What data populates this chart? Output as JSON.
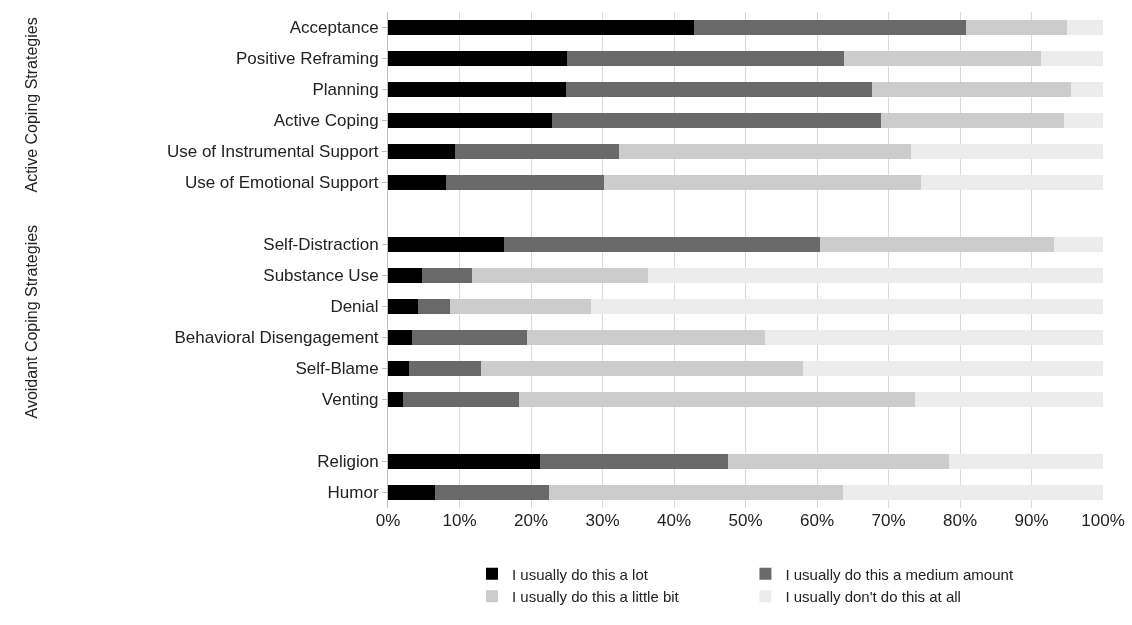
{
  "chart_data": {
    "type": "bar",
    "orientation": "horizontal",
    "stacked": true,
    "categories": [
      "Acceptance",
      "Positive Reframing",
      "Planning",
      "Active Coping",
      "Use of Instrumental Support",
      "Use of Emotional Support",
      null,
      "Self-Distraction",
      "Substance Use",
      "Denial",
      "Behavioral Disengagement",
      "Self-Blame",
      "Venting",
      null,
      "Religion",
      "Humor"
    ],
    "series": [
      {
        "name": "I usually do this a lot",
        "color": "#000000",
        "values": [
          42.8,
          25.1,
          24.9,
          23.0,
          9.3,
          8.1,
          null,
          16.2,
          4.7,
          4.2,
          3.3,
          3.0,
          2.1,
          null,
          21.3,
          6.6
        ]
      },
      {
        "name": "I usually do this a medium amount",
        "color": "#696969",
        "values": [
          38.0,
          38.7,
          42.8,
          45.9,
          23.0,
          22.1,
          null,
          44.2,
          7.0,
          4.5,
          16.2,
          10.0,
          16.2,
          null,
          26.3,
          15.9
        ]
      },
      {
        "name": "I usually do this a little bit",
        "color": "#cccccc",
        "values": [
          14.2,
          27.5,
          27.8,
          25.7,
          40.8,
          44.4,
          null,
          32.7,
          24.6,
          19.7,
          33.2,
          45.0,
          55.4,
          null,
          30.8,
          41.2
        ]
      },
      {
        "name": "I usually don't do this at all",
        "color": "#ececec",
        "values": [
          5.0,
          8.7,
          4.5,
          5.4,
          26.9,
          25.4,
          null,
          6.9,
          63.7,
          71.6,
          47.3,
          42.0,
          26.3,
          null,
          21.6,
          36.3
        ]
      }
    ],
    "xlim": [
      0,
      100
    ],
    "xticks": [
      {
        "value": 0,
        "label": "0%"
      },
      {
        "value": 10,
        "label": "10%"
      },
      {
        "value": 20,
        "label": "20%"
      },
      {
        "value": 30,
        "label": "30%"
      },
      {
        "value": 40,
        "label": "40%"
      },
      {
        "value": 50,
        "label": "50%"
      },
      {
        "value": 60,
        "label": "60%"
      },
      {
        "value": 70,
        "label": "70%"
      },
      {
        "value": 80,
        "label": "80%"
      },
      {
        "value": 90,
        "label": "90%"
      },
      {
        "value": 100,
        "label": "100%"
      }
    ],
    "grid": "x",
    "legend": "bottom",
    "annotations": [
      "Active Coping Strategies",
      "Avoidant Coping Strategies"
    ]
  }
}
